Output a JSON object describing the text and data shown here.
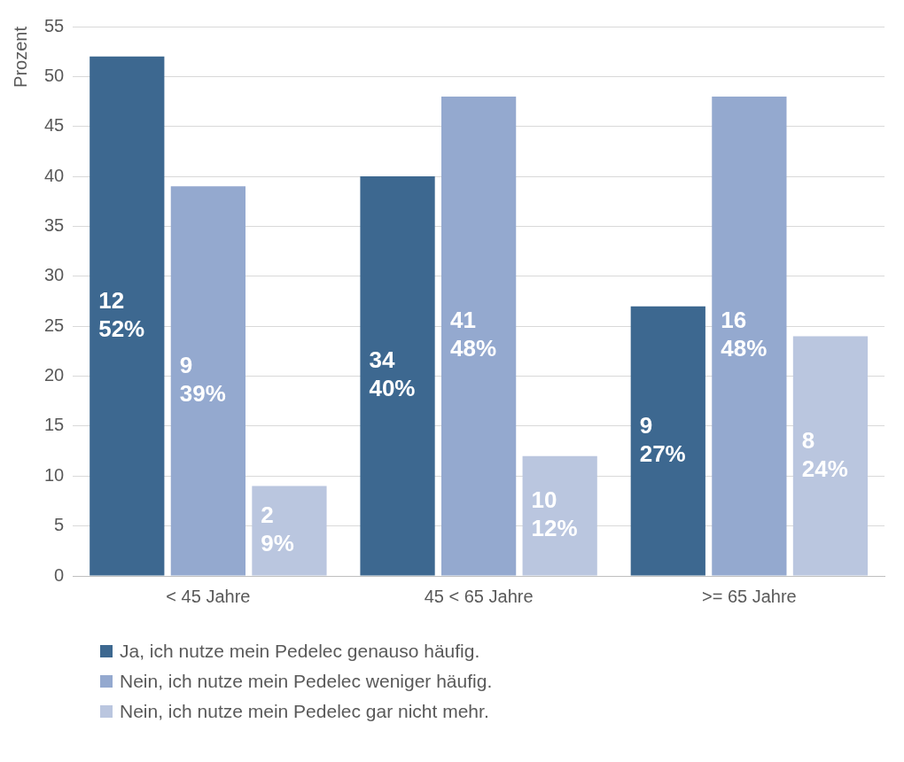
{
  "chart_data": {
    "type": "bar",
    "ylabel": "Prozent",
    "categories": [
      "< 45 Jahre",
      "45 < 65 Jahre",
      ">= 65 Jahre"
    ],
    "series": [
      {
        "name": "Ja, ich nutze mein Pedelec genauso häufig.",
        "color": "#3d6890",
        "values": [
          52,
          40,
          27
        ],
        "value_labels": [
          "12\n52%",
          "34\n40%",
          "9\n27%"
        ]
      },
      {
        "name": "Nein, ich nutze mein Pedelec weniger häufig.",
        "color": "#94a9cf",
        "values": [
          39,
          48,
          48
        ],
        "value_labels": [
          "9\n39%",
          "41\n48%",
          "16\n48%"
        ]
      },
      {
        "name": "Nein, ich nutze mein Pedelec gar nicht mehr.",
        "color": "#bac6df",
        "values": [
          9,
          12,
          24
        ],
        "value_labels": [
          "2\n9%",
          "10\n12%",
          "8\n24%"
        ]
      }
    ],
    "ylim": [
      0,
      55
    ],
    "yticks": [
      0,
      5,
      10,
      15,
      20,
      25,
      30,
      35,
      40,
      45,
      50,
      55
    ],
    "grid": "y",
    "legend": "bottom"
  }
}
